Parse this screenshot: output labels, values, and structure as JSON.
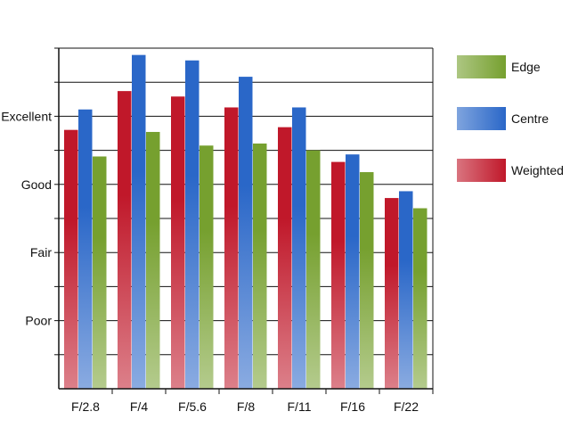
{
  "chart_data": {
    "type": "bar",
    "categories": [
      "F/2.8",
      "F/4",
      "F/5.6",
      "F/8",
      "F/11",
      "F/16",
      "F/22"
    ],
    "y_tick_labels": [
      {
        "value": 1,
        "label": "Poor"
      },
      {
        "value": 2,
        "label": "Fair"
      },
      {
        "value": 3,
        "label": "Good"
      },
      {
        "value": 4,
        "label": "Excellent"
      }
    ],
    "ylim": [
      0,
      5
    ],
    "grid": true,
    "legend_position": "right",
    "series": [
      {
        "name": "Weighted",
        "values": [
          3.8,
          4.37,
          4.29,
          4.13,
          3.84,
          3.33,
          2.8
        ],
        "color": "#c0182a"
      },
      {
        "name": "Centre",
        "values": [
          4.1,
          4.9,
          4.82,
          4.58,
          4.13,
          3.44,
          2.9
        ],
        "color": "#2a67c8"
      },
      {
        "name": "Edge",
        "values": [
          3.41,
          3.77,
          3.57,
          3.6,
          3.5,
          3.18,
          2.65
        ],
        "color": "#76a02f"
      }
    ],
    "legend_order": [
      "Edge",
      "Centre",
      "Weighted"
    ],
    "title": "",
    "xlabel": "",
    "ylabel": ""
  }
}
